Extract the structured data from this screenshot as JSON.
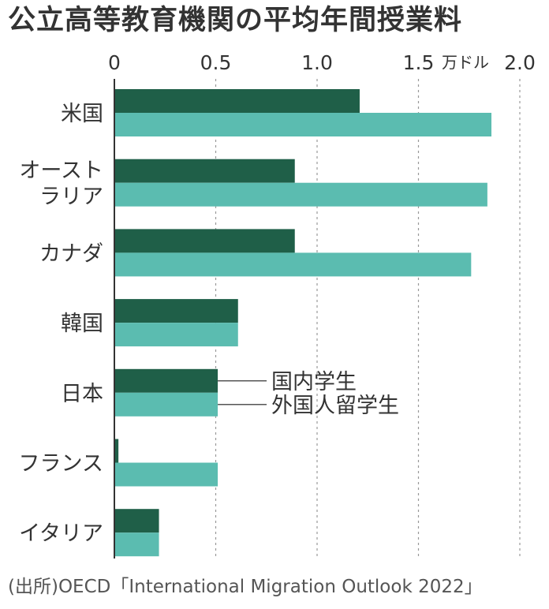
{
  "title": "公立高等教育機関の平均年間授業料",
  "source": "(出所)OECD「International Migration Outlook 2022」",
  "chart_data": {
    "type": "bar",
    "orientation": "horizontal",
    "unit_label": "万ドル",
    "xlim": [
      0,
      2.0
    ],
    "x_ticks": [
      "0",
      "0.5",
      "1.0",
      "1.5",
      "2.0"
    ],
    "grid": true,
    "categories": [
      [
        "米国"
      ],
      [
        "オースト",
        "ラリア"
      ],
      [
        "カナダ"
      ],
      [
        "韓国"
      ],
      [
        "日本"
      ],
      [
        "フランス"
      ],
      [
        "イタリア"
      ]
    ],
    "series": [
      {
        "name": "国内学生",
        "values": [
          1.21,
          0.89,
          0.89,
          0.61,
          0.51,
          0.02,
          0.22
        ]
      },
      {
        "name": "外国人留学生",
        "values": [
          1.86,
          1.84,
          1.76,
          0.61,
          0.51,
          0.51,
          0.22
        ]
      }
    ],
    "colors": [
      "#1f5f48",
      "#5bbcb0"
    ],
    "axis_color": "#333333",
    "grid_color": "#999999"
  }
}
